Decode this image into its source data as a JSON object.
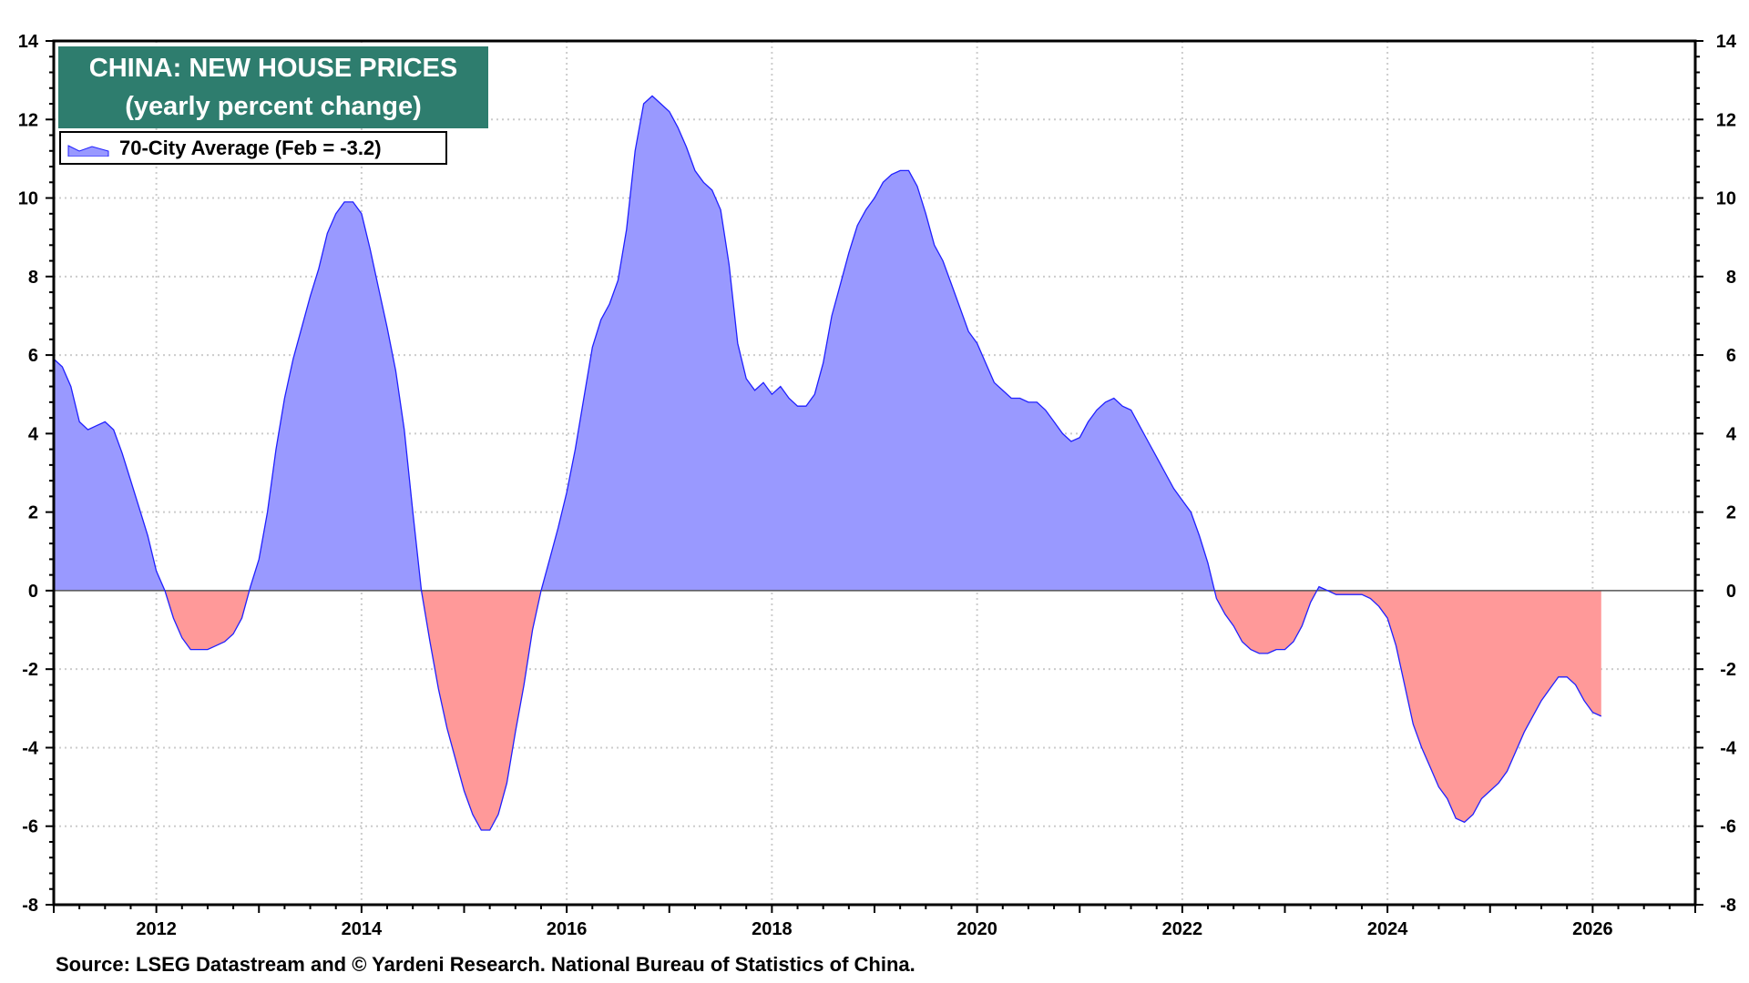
{
  "chart_data": {
    "type": "area",
    "title": "CHINA: NEW HOUSE PRICES",
    "subtitle": "(yearly percent change)",
    "source": "Source: LSEG Datastream and © Yardeni Research. National Bureau of Statistics of China.",
    "legend": {
      "placement": "top-left",
      "entries": [
        "70-City Average (Feb = -3.2)"
      ]
    },
    "xlim": [
      2011,
      2027
    ],
    "ylim": [
      -8,
      14
    ],
    "x_tick_labels": [
      "2012",
      "2014",
      "2016",
      "2018",
      "2020",
      "2022",
      "2024",
      "2026"
    ],
    "y_tick_labels": [
      "14",
      "12",
      "10",
      "8",
      "6",
      "4",
      "2",
      "0",
      "-2",
      "-4",
      "-6",
      "-8"
    ],
    "y_ticks": [
      14,
      12,
      10,
      8,
      6,
      4,
      2,
      0,
      -2,
      -4,
      -6,
      -8
    ],
    "x_ticks": [
      2012,
      2014,
      2016,
      2018,
      2020,
      2022,
      2024,
      2026
    ],
    "grid": true,
    "y_axis_both_sides": true,
    "colors": {
      "positive_fill": "#9999ff",
      "negative_fill": "#ff9999",
      "line": "#2020ff",
      "title_box": "#2e7d6e"
    },
    "series": [
      {
        "name": "70-City Average (Feb = -3.2)",
        "start": "2011-01",
        "frequency": "monthly",
        "values": [
          5.9,
          5.7,
          5.2,
          4.3,
          4.1,
          4.2,
          4.3,
          4.1,
          3.5,
          2.8,
          2.1,
          1.4,
          0.5,
          0.0,
          -0.7,
          -1.2,
          -1.5,
          -1.5,
          -1.5,
          -1.4,
          -1.3,
          -1.1,
          -0.7,
          0.1,
          0.8,
          2.0,
          3.6,
          4.9,
          5.9,
          6.7,
          7.5,
          8.2,
          9.1,
          9.6,
          9.9,
          9.9,
          9.6,
          8.7,
          7.7,
          6.7,
          5.6,
          4.1,
          2.0,
          0.0,
          -1.3,
          -2.5,
          -3.5,
          -4.3,
          -5.1,
          -5.7,
          -6.1,
          -6.1,
          -5.7,
          -4.9,
          -3.6,
          -2.4,
          -1.0,
          0.0,
          0.8,
          1.6,
          2.5,
          3.6,
          4.9,
          6.2,
          6.9,
          7.3,
          7.9,
          9.2,
          11.2,
          12.4,
          12.6,
          12.4,
          12.2,
          11.8,
          11.3,
          10.7,
          10.4,
          10.2,
          9.7,
          8.3,
          6.3,
          5.4,
          5.1,
          5.3,
          5.0,
          5.2,
          4.9,
          4.7,
          4.7,
          5.0,
          5.8,
          7.0,
          7.8,
          8.6,
          9.3,
          9.7,
          10.0,
          10.4,
          10.6,
          10.7,
          10.7,
          10.3,
          9.6,
          8.8,
          8.4,
          7.8,
          7.2,
          6.6,
          6.3,
          5.8,
          5.3,
          5.1,
          4.9,
          4.9,
          4.8,
          4.8,
          4.6,
          4.3,
          4.0,
          3.8,
          3.9,
          4.3,
          4.6,
          4.8,
          4.9,
          4.7,
          4.6,
          4.2,
          3.8,
          3.4,
          3.0,
          2.6,
          2.3,
          2.0,
          1.4,
          0.7,
          -0.2,
          -0.6,
          -0.9,
          -1.3,
          -1.5,
          -1.6,
          -1.6,
          -1.5,
          -1.5,
          -1.3,
          -0.9,
          -0.3,
          0.1,
          0.0,
          -0.1,
          -0.1,
          -0.1,
          -0.1,
          -0.2,
          -0.4,
          -0.7,
          -1.4,
          -2.4,
          -3.4,
          -4.0,
          -4.5,
          -5.0,
          -5.3,
          -5.8,
          -5.9,
          -5.7,
          -5.3,
          -5.1,
          -4.9,
          -4.6,
          -4.1,
          -3.6,
          -3.2,
          -2.8,
          -2.5,
          -2.2,
          -2.2,
          -2.4,
          -2.8,
          -3.1,
          -3.2
        ]
      }
    ]
  }
}
